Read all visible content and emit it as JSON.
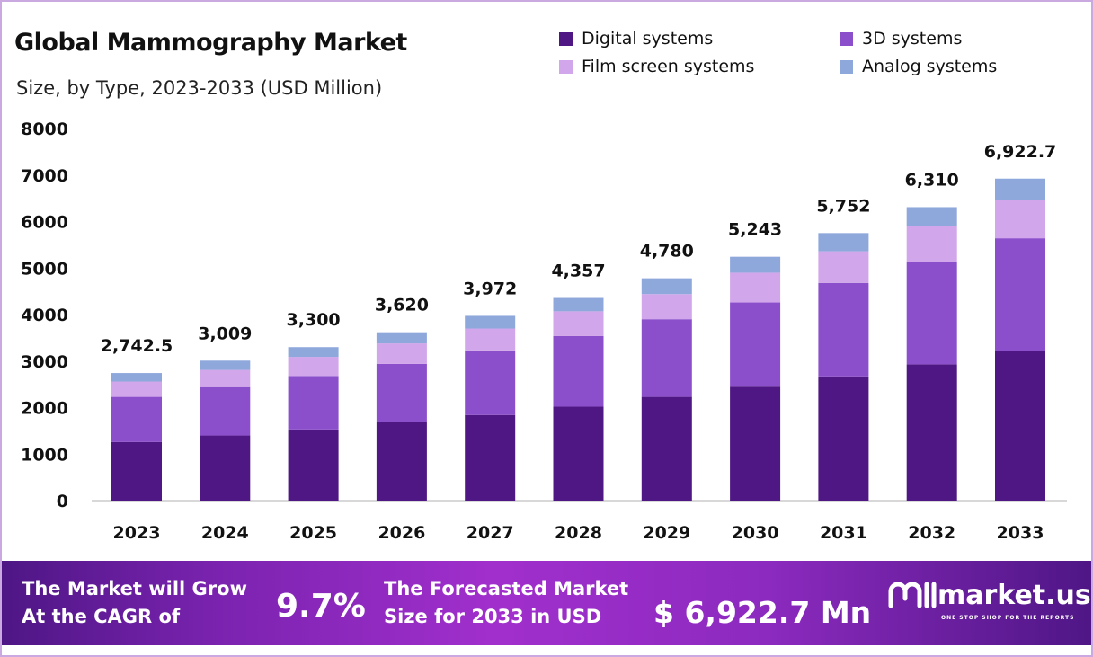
{
  "chart_data": {
    "type": "bar",
    "stacked": true,
    "title": "Global Mammography Market",
    "subtitle": "Size, by Type, 2023-2033 (USD Million)",
    "categories": [
      "2023",
      "2024",
      "2025",
      "2026",
      "2027",
      "2028",
      "2029",
      "2030",
      "2031",
      "2032",
      "2033"
    ],
    "series": [
      {
        "name": "Digital systems",
        "color": "#4f1783",
        "values": [
          1260,
          1400,
          1530,
          1690,
          1840,
          2020,
          2230,
          2450,
          2670,
          2930,
          3220
        ]
      },
      {
        "name": "3D systems",
        "color": "#8c4fcc",
        "values": [
          970,
          1040,
          1150,
          1250,
          1390,
          1520,
          1670,
          1810,
          2010,
          2210,
          2420
        ]
      },
      {
        "name": "Film screen systems",
        "color": "#d1a6ea",
        "values": [
          330,
          370,
          410,
          440,
          470,
          530,
          540,
          640,
          680,
          760,
          830
        ]
      },
      {
        "name": "Analog systems",
        "color": "#8ea8dc",
        "values": [
          182.5,
          199,
          210,
          240,
          272,
          287,
          340,
          343,
          392,
          410,
          452.7
        ]
      }
    ],
    "totals_labels": [
      "2,742.5",
      "3,009",
      "3,300",
      "3,620",
      "3,972",
      "4,357",
      "4,780",
      "5,243",
      "5,752",
      "6,310",
      "6,922.7"
    ],
    "totals": [
      2742.5,
      3009,
      3300,
      3620,
      3972,
      4357,
      4780,
      5243,
      5752,
      6310,
      6922.7
    ],
    "ylim": [
      0,
      8000
    ],
    "yticks": [
      "0",
      "1000",
      "2000",
      "3000",
      "4000",
      "5000",
      "6000",
      "7000",
      "8000"
    ],
    "grid": false,
    "legend_position": "top-right",
    "xlabel": "",
    "ylabel": ""
  },
  "banner": {
    "cagr_label_1": "The Market will Grow",
    "cagr_label_2": "At the CAGR of",
    "cagr_value": "9.7%",
    "forecast_label_1": "The Forecasted Market",
    "forecast_label_2": "Size for 2033 in USD",
    "forecast_value": "$ 6,922.7 Mn",
    "brand": "market.us",
    "brand_tagline": "ONE STOP SHOP FOR THE REPORTS"
  }
}
